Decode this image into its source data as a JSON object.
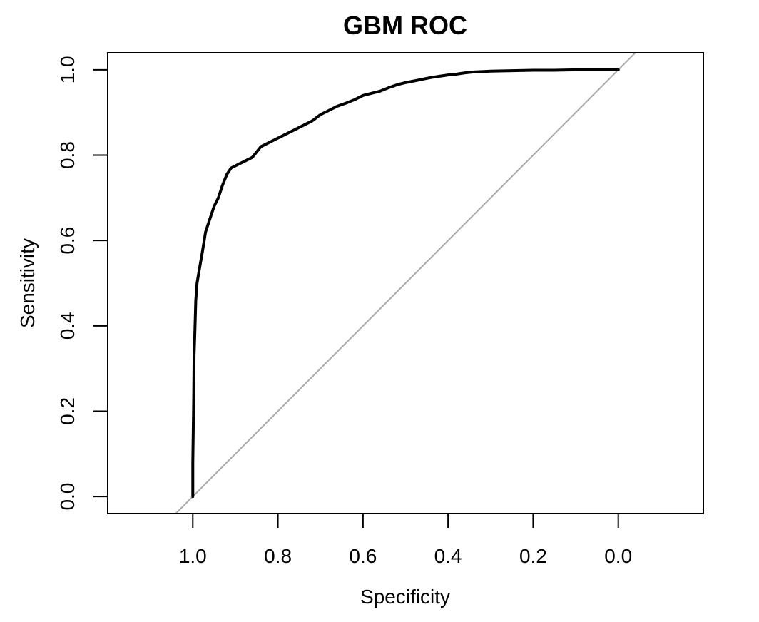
{
  "chart_data": {
    "type": "line",
    "title": "GBM ROC",
    "xlabel": "Specificity",
    "ylabel": "Sensitivity",
    "xlim": [
      1.2,
      -0.2
    ],
    "ylim": [
      -0.04,
      1.04
    ],
    "x_reversed": true,
    "grid": false,
    "legend": "none",
    "x_ticks": [
      1.0,
      0.8,
      0.6,
      0.4,
      0.2,
      0.0
    ],
    "x_tick_labels": [
      "1.0",
      "0.8",
      "0.6",
      "0.4",
      "0.2",
      "0.0"
    ],
    "y_ticks": [
      0.0,
      0.2,
      0.4,
      0.6,
      0.8,
      1.0
    ],
    "y_tick_labels": [
      "0.0",
      "0.2",
      "0.4",
      "0.6",
      "0.8",
      "1.0"
    ],
    "series": [
      {
        "color": "#000000",
        "specificity": [
          1.0,
          1.0,
          0.998,
          0.997,
          0.995,
          0.993,
          0.99,
          0.985,
          0.978,
          0.97,
          0.96,
          0.95,
          0.94,
          0.93,
          0.92,
          0.91,
          0.9,
          0.88,
          0.86,
          0.84,
          0.82,
          0.8,
          0.78,
          0.76,
          0.74,
          0.72,
          0.7,
          0.68,
          0.66,
          0.64,
          0.62,
          0.6,
          0.58,
          0.56,
          0.54,
          0.52,
          0.5,
          0.48,
          0.46,
          0.44,
          0.42,
          0.4,
          0.38,
          0.36,
          0.34,
          0.32,
          0.3,
          0.25,
          0.2,
          0.15,
          0.1,
          0.05,
          0.0
        ],
        "sensitivity": [
          0.0,
          0.08,
          0.22,
          0.33,
          0.39,
          0.46,
          0.5,
          0.53,
          0.57,
          0.62,
          0.65,
          0.68,
          0.7,
          0.73,
          0.755,
          0.77,
          0.775,
          0.785,
          0.795,
          0.82,
          0.83,
          0.84,
          0.85,
          0.86,
          0.87,
          0.88,
          0.895,
          0.905,
          0.915,
          0.922,
          0.93,
          0.94,
          0.945,
          0.95,
          0.958,
          0.965,
          0.97,
          0.974,
          0.978,
          0.982,
          0.985,
          0.988,
          0.99,
          0.993,
          0.995,
          0.996,
          0.997,
          0.998,
          0.999,
          0.999,
          1.0,
          1.0,
          1.0
        ]
      }
    ],
    "reference_line": {
      "color": "#aaaaaa",
      "specificity": [
        1.04,
        -0.04
      ],
      "sensitivity": [
        -0.04,
        1.04
      ]
    },
    "colors": {
      "curve": "#000000",
      "diagonal": "#aaaaaa",
      "axes": "#000000",
      "background": "#ffffff"
    }
  }
}
